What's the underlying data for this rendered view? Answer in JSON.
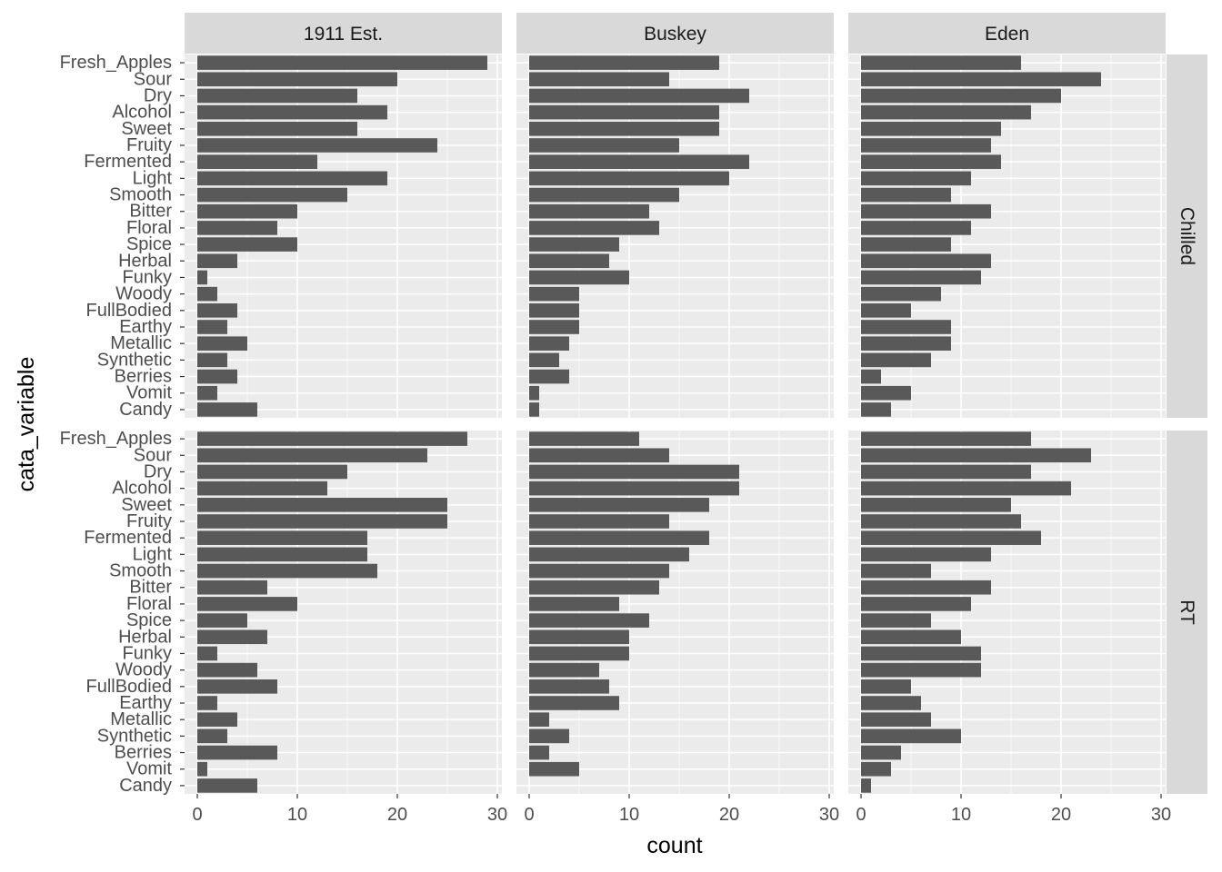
{
  "chart_data": {
    "type": "bar",
    "orientation": "horizontal",
    "xlabel": "count",
    "ylabel": "cata_variable",
    "xlim": [
      0,
      30
    ],
    "xticks": [
      0,
      10,
      20,
      30
    ],
    "grid": true,
    "columns": [
      "1911 Est.",
      "Buskey",
      "Eden"
    ],
    "rows": [
      "Chilled",
      "RT"
    ],
    "categories": [
      "Fresh_Apples",
      "Sour",
      "Dry",
      "Alcohol",
      "Sweet",
      "Fruity",
      "Fermented",
      "Light",
      "Smooth",
      "Bitter",
      "Floral",
      "Spice",
      "Herbal",
      "Funky",
      "Woody",
      "FullBodied",
      "Earthy",
      "Metallic",
      "Synthetic",
      "Berries",
      "Vomit",
      "Candy"
    ],
    "panels": [
      {
        "column": "1911 Est.",
        "row": "Chilled",
        "values": [
          29,
          20,
          16,
          19,
          16,
          24,
          12,
          19,
          15,
          10,
          8,
          10,
          4,
          1,
          2,
          4,
          3,
          5,
          3,
          4,
          2,
          6
        ]
      },
      {
        "column": "Buskey",
        "row": "Chilled",
        "values": [
          19,
          14,
          22,
          19,
          19,
          15,
          22,
          20,
          15,
          12,
          13,
          9,
          8,
          10,
          5,
          5,
          5,
          4,
          3,
          4,
          1,
          1
        ]
      },
      {
        "column": "Eden",
        "row": "Chilled",
        "values": [
          16,
          24,
          20,
          17,
          14,
          13,
          14,
          11,
          9,
          13,
          11,
          9,
          13,
          12,
          8,
          5,
          9,
          9,
          7,
          2,
          5,
          3
        ]
      },
      {
        "column": "1911 Est.",
        "row": "RT",
        "values": [
          27,
          23,
          15,
          13,
          25,
          25,
          17,
          17,
          18,
          7,
          10,
          5,
          7,
          2,
          6,
          8,
          2,
          4,
          3,
          8,
          1,
          6
        ]
      },
      {
        "column": "Buskey",
        "row": "RT",
        "values": [
          11,
          14,
          21,
          21,
          18,
          14,
          18,
          16,
          14,
          13,
          9,
          12,
          10,
          10,
          7,
          8,
          9,
          2,
          4,
          2,
          5,
          0
        ]
      },
      {
        "column": "Eden",
        "row": "RT",
        "values": [
          17,
          23,
          17,
          21,
          15,
          16,
          18,
          13,
          7,
          13,
          11,
          7,
          10,
          12,
          12,
          5,
          6,
          7,
          10,
          4,
          3,
          1
        ]
      }
    ],
    "colors": {
      "bar": "#595959",
      "panel_bg": "#ebebeb",
      "strip_bg": "#d9d9d9",
      "grid": "#ffffff",
      "tick": "#333333",
      "tick_text": "#4d4d4d"
    }
  }
}
